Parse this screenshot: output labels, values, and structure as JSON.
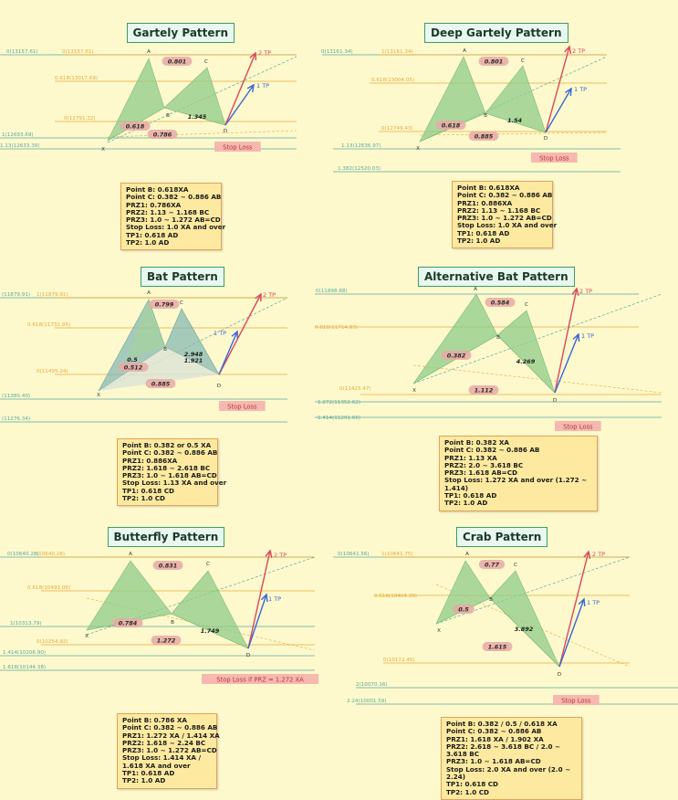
{
  "panels": [
    {
      "id": "gartley",
      "title": "Gartely Pattern",
      "level_labels": [
        "0(13157.61)",
        "0(13157.61)",
        "0.618(13017.69)",
        "0(12791.32)",
        "1(12693.69)",
        "1.13(12633.39)"
      ],
      "points": [
        "A",
        "B",
        "C",
        "D",
        "X"
      ],
      "ratios": [
        "0.801",
        "0.618",
        "0.786",
        "1.345"
      ],
      "targets": [
        "1 TP",
        "2 TP"
      ],
      "stop_loss": "Stop Loss",
      "rules": [
        "Point B: 0.618XA",
        "Point C: 0.382 ~ 0.886 AB",
        "PRZ1: 0.786XA",
        "PRZ2: 1.13 ~ 1.168 BC",
        "PRZ3: 1.0 ~ 1.272 AB=CD",
        "Stop Loss: 1.0 XA and over",
        "TP1: 0.618 AD",
        "TP2: 1.0 AD"
      ]
    },
    {
      "id": "deep-gartley",
      "title": "Deep Gartely Pattern",
      "level_labels": [
        "0(13161.34)",
        "1(13161.34)",
        "0.618(13004.05)",
        "0(12749.43)",
        "1.13(12636.97)",
        "1.382(12520.03)"
      ],
      "points": [
        "A",
        "B",
        "C",
        "D",
        "X"
      ],
      "ratios": [
        "0.801",
        "0.618",
        "0.885",
        "1.54"
      ],
      "targets": [
        "1 TP",
        "2 TP"
      ],
      "stop_loss": "Stop Loss",
      "rules": [
        "Point B: 0.618XA",
        "Point C: 0.382 ~ 0.886 AB",
        "PRZ1: 0.886XA",
        "PRZ2: 1.13 ~ 1.168 BC",
        "PRZ3: 1.0 ~ 1.272 AB=CD",
        "Stop Loss: 1.0 XA and over",
        "TP1: 0.618 AD",
        "TP2: 1.0 AD"
      ]
    },
    {
      "id": "bat",
      "title": "Bat Pattern",
      "level_labels": [
        "(11879.91)",
        "1(11879.91)",
        "0.618(11732.95)",
        "0(11495.24)",
        "(11380.40)",
        "(11276.34)"
      ],
      "points": [
        "A",
        "B",
        "C",
        "D",
        "X"
      ],
      "ratios": [
        "0.799",
        "0.5",
        "0.512",
        "0.885",
        "2.948",
        "1.921"
      ],
      "targets": [
        "1 TP",
        "2 TP"
      ],
      "stop_loss": "Stop Loss",
      "rules": [
        "Point B: 0.382 or 0.5 XA",
        "Point C: 0.382 ~ 0.886 AB",
        "PRZ1: 0.886XA",
        "PRZ2: 1.618 ~ 2.618 BC",
        "PRZ3: 1.0 ~ 1.618 AB=CD",
        "Stop Loss: 1.13 XA and over",
        "TP1: 0.618 CD",
        "TP2: 1.0 CD"
      ]
    },
    {
      "id": "alt-bat",
      "title": "Alternative Bat Pattern",
      "level_labels": [
        "0(11898.68)",
        "0.618(11714.83)",
        "0(11425.47)",
        "1.272(11352.62)",
        "1.414(11291.66)"
      ],
      "points": [
        "A",
        "B",
        "C",
        "D",
        "X"
      ],
      "ratios": [
        "0.584",
        "0.382",
        "1.112",
        "4.269"
      ],
      "targets": [
        "1 TP",
        "2 TP"
      ],
      "stop_loss": "Stop Loss",
      "rules": [
        "Point B: 0.382 XA",
        "Point C: 0.382 ~ 0.886 AB",
        "PRZ1: 1.13 XA",
        "PRZ2: 2.0 ~ 3.618 BC",
        "PRZ3: 1.618 AB=CD",
        "Stop Loss: 1.272 XA and over (1.272 ~ 1.414)",
        "TP1: 0.618 AD",
        "TP2: 1.0 AD"
      ]
    },
    {
      "id": "butterfly",
      "title": "Butterfly Pattern",
      "level_labels": [
        "0(10640.28)",
        "(10640.28)",
        "0.618(10493.06)",
        "1(10313.79)",
        "0(10254.92)",
        "1.414(10206.90)",
        "1.618(10144.38)"
      ],
      "points": [
        "A",
        "B",
        "C",
        "D",
        "X"
      ],
      "ratios": [
        "0.831",
        "0.784",
        "1.272",
        "1.749"
      ],
      "targets": [
        "1 TP",
        "2 TP"
      ],
      "stop_loss": "Stop Loss if PRZ = 1.272 XA",
      "rules": [
        "Point B: 0.786 XA",
        "Point C: 0.382 ~ 0.886 AB",
        "PRZ1: 1.272 XA / 1.414 XA",
        "PRZ2: 1.618 ~ 2.24 BC",
        "PRZ3: 1.0 ~ 1.272 AB=CD",
        "Stop Loss: 1.414 XA / 1.618 XA and over",
        "TP1: 0.618 AD",
        "TP2: 1.0 AD"
      ]
    },
    {
      "id": "crab",
      "title": "Crab Pattern",
      "level_labels": [
        "0(10641.56)",
        "1(10641.75)",
        "0.618(10464.39)",
        "0(10172.45)",
        "2(10070.16)",
        "2.24(10001.59)"
      ],
      "points": [
        "A",
        "B",
        "C",
        "D",
        "X"
      ],
      "ratios": [
        "0.77",
        "0.5",
        "1.615",
        "3.892"
      ],
      "targets": [
        "1 TP",
        "2 TP"
      ],
      "stop_loss": "Stop Loss",
      "rules": [
        "Point B: 0.382 / 0.5 / 0.618 XA",
        "Point C: 0.382 ~ 0.886 AB",
        "PRZ1: 1.618 XA / 1.902 XA",
        "PRZ2: 2.618 ~ 3.618 BC / 2.0 ~ 3.618 BC",
        "PRZ3: 1.0 ~ 1.618 AB=CD",
        "Stop Loss: 2.0 XA and over (2.0 ~ 2.24)",
        "TP1: 0.618 CD",
        "TP2: 1.0 CD"
      ]
    }
  ],
  "colors": {
    "background": "#fdf9cc",
    "pattern_fill": "#8fcc8a",
    "fib_teal": "#5aa8a0",
    "fib_orange": "#e8a83a",
    "tp1_arrow": "#3a66d8",
    "tp2_arrow": "#d8485a",
    "stop_loss_bg": "#f7b8b0",
    "rules_box": "#fdeaa0"
  }
}
